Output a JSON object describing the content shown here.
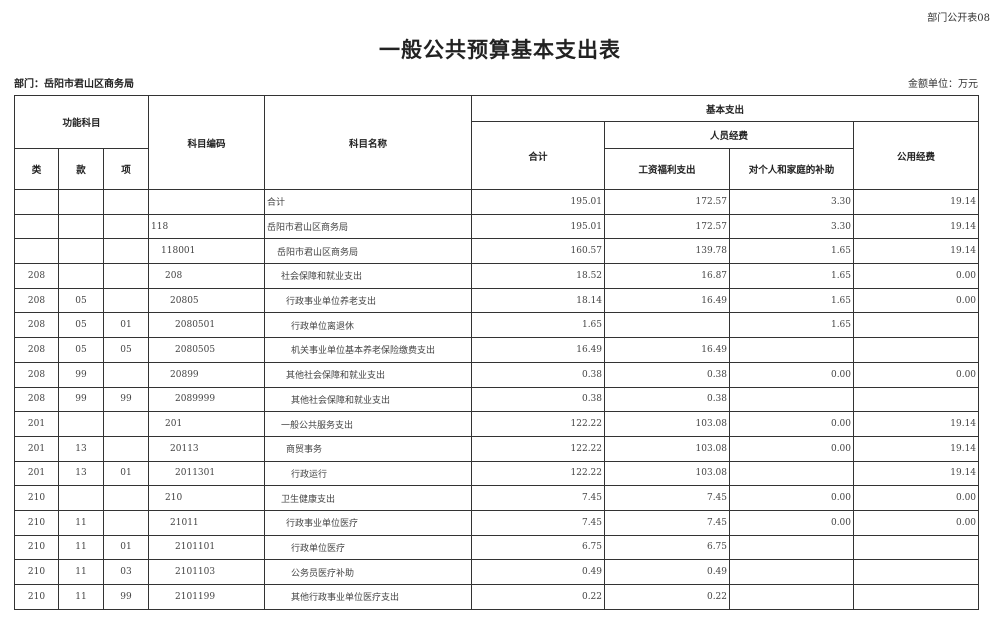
{
  "form_number": "部门公开表08",
  "title": "一般公共预算基本支出表",
  "department": "部门：岳阳市君山区商务局",
  "unit": "金额单位：万元",
  "headers": {
    "function_subject": "功能科目",
    "lei": "类",
    "kuan": "款",
    "xiang": "项",
    "subject_code": "科目编码",
    "subject_name": "科目名称",
    "basic_expenditure": "基本支出",
    "total": "合计",
    "personnel": "人员经费",
    "wages": "工资福利支出",
    "subsidy": "对个人和家庭的补助",
    "public": "公用经费"
  },
  "rows": [
    {
      "lei": "",
      "kuan": "",
      "xiang": "",
      "code": "",
      "name": "合计",
      "total": "195.01",
      "wages": "172.57",
      "subsidy": "3.30",
      "public": "19.14"
    },
    {
      "lei": "",
      "kuan": "",
      "xiang": "",
      "code": "118",
      "name": "岳阳市君山区商务局",
      "total": "195.01",
      "wages": "172.57",
      "subsidy": "3.30",
      "public": "19.14"
    },
    {
      "lei": "",
      "kuan": "",
      "xiang": "",
      "code": "118001",
      "name": "岳阳市君山区商务局",
      "total": "160.57",
      "wages": "139.78",
      "subsidy": "1.65",
      "public": "19.14"
    },
    {
      "lei": "208",
      "kuan": "",
      "xiang": "",
      "code": "208",
      "name": "社会保障和就业支出",
      "total": "18.52",
      "wages": "16.87",
      "subsidy": "1.65",
      "public": "0.00"
    },
    {
      "lei": "208",
      "kuan": "05",
      "xiang": "",
      "code": "20805",
      "name": "行政事业单位养老支出",
      "total": "18.14",
      "wages": "16.49",
      "subsidy": "1.65",
      "public": "0.00"
    },
    {
      "lei": "208",
      "kuan": "05",
      "xiang": "01",
      "code": "2080501",
      "name": "行政单位离退休",
      "total": "1.65",
      "wages": "",
      "subsidy": "1.65",
      "public": ""
    },
    {
      "lei": "208",
      "kuan": "05",
      "xiang": "05",
      "code": "2080505",
      "name": "机关事业单位基本养老保险缴费支出",
      "total": "16.49",
      "wages": "16.49",
      "subsidy": "",
      "public": ""
    },
    {
      "lei": "208",
      "kuan": "99",
      "xiang": "",
      "code": "20899",
      "name": "其他社会保障和就业支出",
      "total": "0.38",
      "wages": "0.38",
      "subsidy": "0.00",
      "public": "0.00"
    },
    {
      "lei": "208",
      "kuan": "99",
      "xiang": "99",
      "code": "2089999",
      "name": "其他社会保障和就业支出",
      "total": "0.38",
      "wages": "0.38",
      "subsidy": "",
      "public": ""
    },
    {
      "lei": "201",
      "kuan": "",
      "xiang": "",
      "code": "201",
      "name": "一般公共服务支出",
      "total": "122.22",
      "wages": "103.08",
      "subsidy": "0.00",
      "public": "19.14"
    },
    {
      "lei": "201",
      "kuan": "13",
      "xiang": "",
      "code": "20113",
      "name": "商贸事务",
      "total": "122.22",
      "wages": "103.08",
      "subsidy": "0.00",
      "public": "19.14"
    },
    {
      "lei": "201",
      "kuan": "13",
      "xiang": "01",
      "code": "2011301",
      "name": "行政运行",
      "total": "122.22",
      "wages": "103.08",
      "subsidy": "",
      "public": "19.14"
    },
    {
      "lei": "210",
      "kuan": "",
      "xiang": "",
      "code": "210",
      "name": "卫生健康支出",
      "total": "7.45",
      "wages": "7.45",
      "subsidy": "0.00",
      "public": "0.00"
    },
    {
      "lei": "210",
      "kuan": "11",
      "xiang": "",
      "code": "21011",
      "name": "行政事业单位医疗",
      "total": "7.45",
      "wages": "7.45",
      "subsidy": "0.00",
      "public": "0.00"
    },
    {
      "lei": "210",
      "kuan": "11",
      "xiang": "01",
      "code": "2101101",
      "name": "行政单位医疗",
      "total": "6.75",
      "wages": "6.75",
      "subsidy": "",
      "public": ""
    },
    {
      "lei": "210",
      "kuan": "11",
      "xiang": "03",
      "code": "2101103",
      "name": "公务员医疗补助",
      "total": "0.49",
      "wages": "0.49",
      "subsidy": "",
      "public": ""
    },
    {
      "lei": "210",
      "kuan": "11",
      "xiang": "99",
      "code": "2101199",
      "name": "其他行政事业单位医疗支出",
      "total": "0.22",
      "wages": "0.22",
      "subsidy": "",
      "public": ""
    }
  ]
}
